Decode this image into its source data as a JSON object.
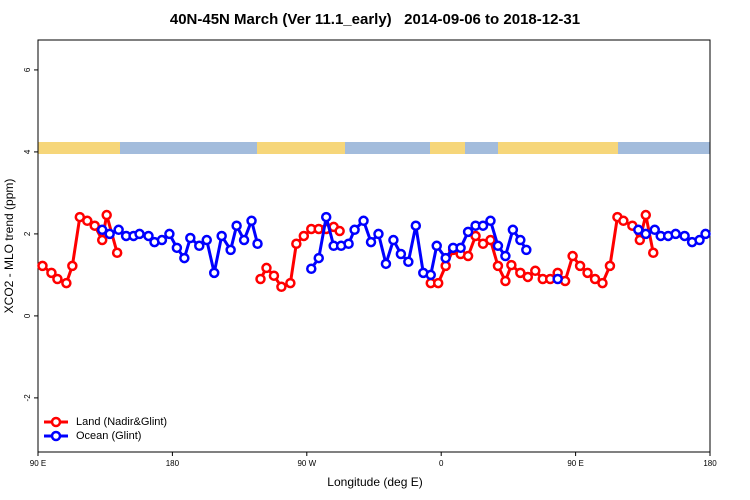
{
  "chart_data": {
    "type": "line",
    "title": "40N-45N March (Ver 11.1_early)   2014-09-06 to 2018-12-31",
    "xlabel": "Longitude (deg E)",
    "ylabel": "XCO2 - MLO trend (ppm)",
    "xlim": [
      90,
      540
    ],
    "ylim": [
      -3.32,
      6.73
    ],
    "xticks": [
      {
        "value": 90,
        "label": "90 E"
      },
      {
        "value": 180,
        "label": "180"
      },
      {
        "value": 270,
        "label": "90 W"
      },
      {
        "value": 360,
        "label": "0"
      },
      {
        "value": 450,
        "label": "90 E"
      },
      {
        "value": 540,
        "label": "180"
      }
    ],
    "yticks": [
      -2,
      0,
      2,
      4,
      6
    ],
    "legend": "bottom-left",
    "series": [
      {
        "name": "Land (Nadir&Glint)",
        "color": "#ff0000",
        "x": [
          93,
          99,
          103,
          109,
          113,
          118,
          123,
          128,
          133,
          136,
          143,
          190,
          239,
          243,
          248,
          253,
          259,
          263,
          268,
          273,
          278,
          283,
          288,
          292,
          320,
          353,
          358,
          363,
          368,
          373,
          378,
          383,
          388,
          393,
          398,
          403,
          407,
          413,
          418,
          423,
          428,
          433,
          438,
          443,
          448,
          453,
          458,
          463,
          468,
          473,
          478,
          482,
          488,
          493,
          497,
          502
        ],
        "values": [
          1.22,
          1.05,
          0.9,
          0.8,
          1.22,
          2.41,
          2.32,
          2.2,
          1.85,
          2.46,
          1.54,
          null,
          0.9,
          1.17,
          0.98,
          0.71,
          0.8,
          1.76,
          1.95,
          2.12,
          2.12,
          2.12,
          2.17,
          2.07,
          null,
          0.8,
          0.8,
          1.22,
          1.61,
          1.51,
          1.46,
          1.95,
          1.76,
          1.85,
          1.22,
          0.85,
          1.24,
          1.05,
          0.95,
          1.1,
          0.9,
          0.9,
          1.05,
          0.85,
          1.46,
          1.22,
          1.05,
          0.9,
          0.8,
          1.22,
          2.41,
          2.32,
          2.2,
          1.85,
          2.46,
          1.54
        ]
      },
      {
        "name": "Ocean (Glint)",
        "color": "#0000ff",
        "x": [
          133,
          138,
          144,
          149,
          154,
          158,
          164,
          168,
          173,
          178,
          183,
          188,
          192,
          198,
          203,
          208,
          213,
          219,
          223,
          228,
          233,
          237,
          255,
          273,
          278,
          283,
          288,
          293,
          298,
          302,
          308,
          313,
          318,
          323,
          328,
          333,
          338,
          343,
          348,
          353,
          357,
          363,
          368,
          373,
          378,
          383,
          388,
          393,
          398,
          403,
          408,
          413,
          417,
          427,
          438,
          465,
          492,
          497,
          503,
          507,
          512,
          517,
          523,
          528,
          533,
          537
        ],
        "values": [
          2.1,
          2.0,
          2.1,
          1.95,
          1.95,
          2.0,
          1.95,
          1.8,
          1.85,
          2.0,
          1.66,
          1.41,
          1.9,
          1.71,
          1.85,
          1.05,
          1.95,
          1.61,
          2.2,
          1.85,
          2.32,
          1.76,
          null,
          1.15,
          1.41,
          2.41,
          1.71,
          1.71,
          1.76,
          2.1,
          2.32,
          1.8,
          2.0,
          1.27,
          1.85,
          1.51,
          1.32,
          2.2,
          1.05,
          1.0,
          1.71,
          1.41,
          1.66,
          1.66,
          2.05,
          2.2,
          2.2,
          2.32,
          1.71,
          1.46,
          2.1,
          1.85,
          1.61,
          null,
          0.9,
          null,
          2.1,
          2.0,
          2.1,
          1.95,
          1.95,
          2.0,
          1.95,
          1.8,
          1.85,
          2.0
        ]
      }
    ]
  }
}
